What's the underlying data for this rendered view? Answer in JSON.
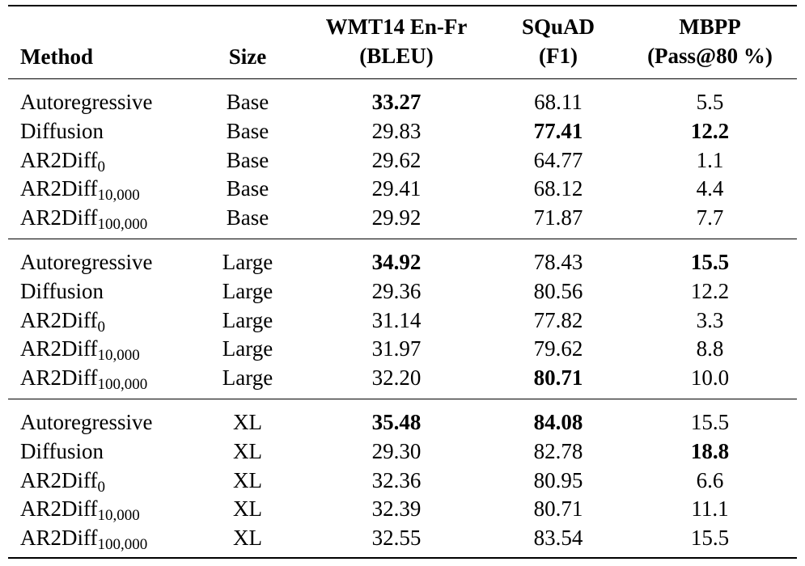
{
  "table": {
    "headers": {
      "method": "Method",
      "size": "Size",
      "bleu_line1": "WMT14 En-Fr",
      "bleu_line2": "(BLEU)",
      "squad_line1": "SQuAD",
      "squad_line2": "(F1)",
      "mbpp_line1": "MBPP",
      "mbpp_line2": "(Pass@80 %)"
    },
    "groups": [
      {
        "rows": [
          {
            "method": "Autoregressive",
            "sub": "",
            "size": "Base",
            "bleu": "33.27",
            "squad": "68.11",
            "mbpp": "5.5",
            "bold": [
              "bleu"
            ]
          },
          {
            "method": "Diffusion",
            "sub": "",
            "size": "Base",
            "bleu": "29.83",
            "squad": "77.41",
            "mbpp": "12.2",
            "bold": [
              "squad",
              "mbpp"
            ]
          },
          {
            "method": "AR2Diff",
            "sub": "0",
            "size": "Base",
            "bleu": "29.62",
            "squad": "64.77",
            "mbpp": "1.1",
            "bold": []
          },
          {
            "method": "AR2Diff",
            "sub": "10,000",
            "size": "Base",
            "bleu": "29.41",
            "squad": "68.12",
            "mbpp": "4.4",
            "bold": []
          },
          {
            "method": "AR2Diff",
            "sub": "100,000",
            "size": "Base",
            "bleu": "29.92",
            "squad": "71.87",
            "mbpp": "7.7",
            "bold": []
          }
        ]
      },
      {
        "rows": [
          {
            "method": "Autoregressive",
            "sub": "",
            "size": "Large",
            "bleu": "34.92",
            "squad": "78.43",
            "mbpp": "15.5",
            "bold": [
              "bleu",
              "mbpp"
            ]
          },
          {
            "method": "Diffusion",
            "sub": "",
            "size": "Large",
            "bleu": "29.36",
            "squad": "80.56",
            "mbpp": "12.2",
            "bold": []
          },
          {
            "method": "AR2Diff",
            "sub": "0",
            "size": "Large",
            "bleu": "31.14",
            "squad": "77.82",
            "mbpp": "3.3",
            "bold": []
          },
          {
            "method": "AR2Diff",
            "sub": "10,000",
            "size": "Large",
            "bleu": "31.97",
            "squad": "79.62",
            "mbpp": "8.8",
            "bold": []
          },
          {
            "method": "AR2Diff",
            "sub": "100,000",
            "size": "Large",
            "bleu": "32.20",
            "squad": "80.71",
            "mbpp": "10.0",
            "bold": [
              "squad"
            ]
          }
        ]
      },
      {
        "rows": [
          {
            "method": "Autoregressive",
            "sub": "",
            "size": "XL",
            "bleu": "35.48",
            "squad": "84.08",
            "mbpp": "15.5",
            "bold": [
              "bleu",
              "squad"
            ]
          },
          {
            "method": "Diffusion",
            "sub": "",
            "size": "XL",
            "bleu": "29.30",
            "squad": "82.78",
            "mbpp": "18.8",
            "bold": [
              "mbpp"
            ]
          },
          {
            "method": "AR2Diff",
            "sub": "0",
            "size": "XL",
            "bleu": "32.36",
            "squad": "80.95",
            "mbpp": "6.6",
            "bold": []
          },
          {
            "method": "AR2Diff",
            "sub": "10,000",
            "size": "XL",
            "bleu": "32.39",
            "squad": "80.71",
            "mbpp": "11.1",
            "bold": []
          },
          {
            "method": "AR2Diff",
            "sub": "100,000",
            "size": "XL",
            "bleu": "32.55",
            "squad": "83.54",
            "mbpp": "15.5",
            "bold": []
          }
        ]
      }
    ]
  }
}
